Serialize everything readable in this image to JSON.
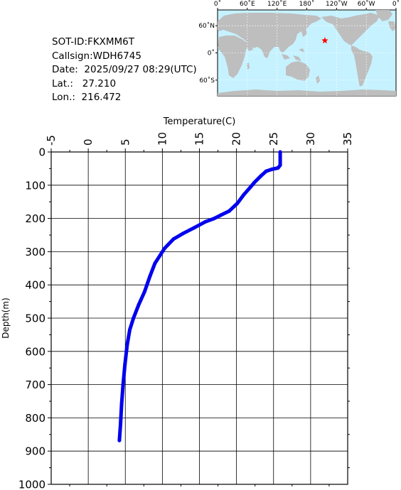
{
  "info": {
    "sot_id": "SOT-ID:FKXMM6T",
    "callsign": "Callsign:WDH6745",
    "date": "Date:  2025/09/27 08:29(UTC)",
    "lat": "Lat.:   27.210",
    "lon": "Lon.:  216.472"
  },
  "map": {
    "top_ticks": [
      "0˚",
      "60˚E",
      "120˚E",
      "180˚",
      "120˚W",
      "60˚W",
      "0˚"
    ],
    "lat_ticks": [
      "60˚N",
      "0˚",
      "60˚S"
    ],
    "ocean_color": "#c6f2ff",
    "land_color": "#bebebe",
    "marker": {
      "lat": 27.21,
      "lon": 216.472,
      "color": "#ff0000"
    }
  },
  "chart_data": {
    "type": "line",
    "xlabel": "Temperature(C)",
    "ylabel": "Depth(m)",
    "xlim": [
      -5,
      35
    ],
    "ylim": [
      0,
      1000
    ],
    "y_inverted": true,
    "x_ticks": [
      "-5",
      "0",
      "5",
      "10",
      "15",
      "20",
      "25",
      "30",
      "35"
    ],
    "y_ticks": [
      "0",
      "100",
      "200",
      "300",
      "400",
      "500",
      "600",
      "700",
      "800",
      "900",
      "1000"
    ],
    "grid": true,
    "series": [
      {
        "color": "#0000ee",
        "points": [
          [
            25.9,
            0
          ],
          [
            25.9,
            15
          ],
          [
            25.9,
            40
          ],
          [
            25.6,
            48
          ],
          [
            24.8,
            52
          ],
          [
            24.0,
            58
          ],
          [
            23.3,
            72
          ],
          [
            22.4,
            92
          ],
          [
            21.8,
            108
          ],
          [
            21.0,
            128
          ],
          [
            20.1,
            155
          ],
          [
            19.0,
            178
          ],
          [
            17.9,
            190
          ],
          [
            17.0,
            200
          ],
          [
            15.8,
            210
          ],
          [
            14.3,
            228
          ],
          [
            12.8,
            245
          ],
          [
            11.5,
            262
          ],
          [
            10.3,
            290
          ],
          [
            9.0,
            335
          ],
          [
            8.3,
            375
          ],
          [
            7.6,
            420
          ],
          [
            6.8,
            460
          ],
          [
            6.1,
            500
          ],
          [
            5.6,
            535
          ],
          [
            5.25,
            580
          ],
          [
            4.95,
            640
          ],
          [
            4.7,
            700
          ],
          [
            4.5,
            760
          ],
          [
            4.35,
            820
          ],
          [
            4.2,
            868
          ]
        ]
      }
    ]
  }
}
